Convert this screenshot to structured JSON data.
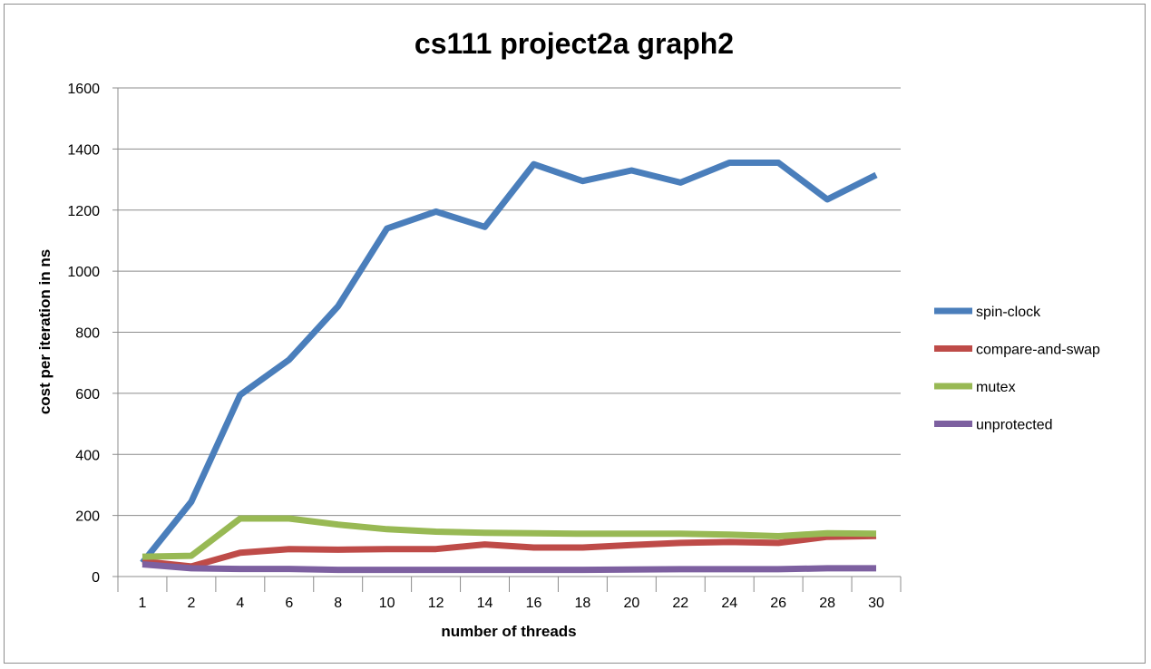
{
  "chart_data": {
    "type": "line",
    "title": "cs111 project2a graph2",
    "xlabel": "number of threads",
    "ylabel": "cost  per iteration in ns",
    "categories": [
      "1",
      "2",
      "4",
      "6",
      "8",
      "10",
      "12",
      "14",
      "16",
      "18",
      "20",
      "22",
      "24",
      "26",
      "28",
      "30"
    ],
    "ylim": [
      0,
      1600
    ],
    "yticks": [
      0,
      200,
      400,
      600,
      800,
      1000,
      1200,
      1400,
      1600
    ],
    "grid": true,
    "legend": "right",
    "series": [
      {
        "name": "spin-clock",
        "color": "#4a7ebb",
        "values": [
          45,
          245,
          595,
          710,
          885,
          1140,
          1195,
          1145,
          1350,
          1295,
          1330,
          1290,
          1355,
          1355,
          1235,
          1315
        ]
      },
      {
        "name": "compare-and-swap",
        "color": "#be4b48",
        "values": [
          50,
          33,
          78,
          90,
          88,
          90,
          90,
          105,
          95,
          95,
          103,
          110,
          113,
          110,
          130,
          133
        ]
      },
      {
        "name": "mutex",
        "color": "#98b954",
        "values": [
          65,
          68,
          190,
          190,
          170,
          155,
          147,
          143,
          142,
          140,
          140,
          140,
          137,
          132,
          142,
          140
        ]
      },
      {
        "name": "unprotected",
        "color": "#7d60a0",
        "values": [
          40,
          27,
          25,
          25,
          22,
          22,
          22,
          22,
          22,
          22,
          23,
          24,
          24,
          24,
          27,
          27
        ]
      }
    ]
  }
}
